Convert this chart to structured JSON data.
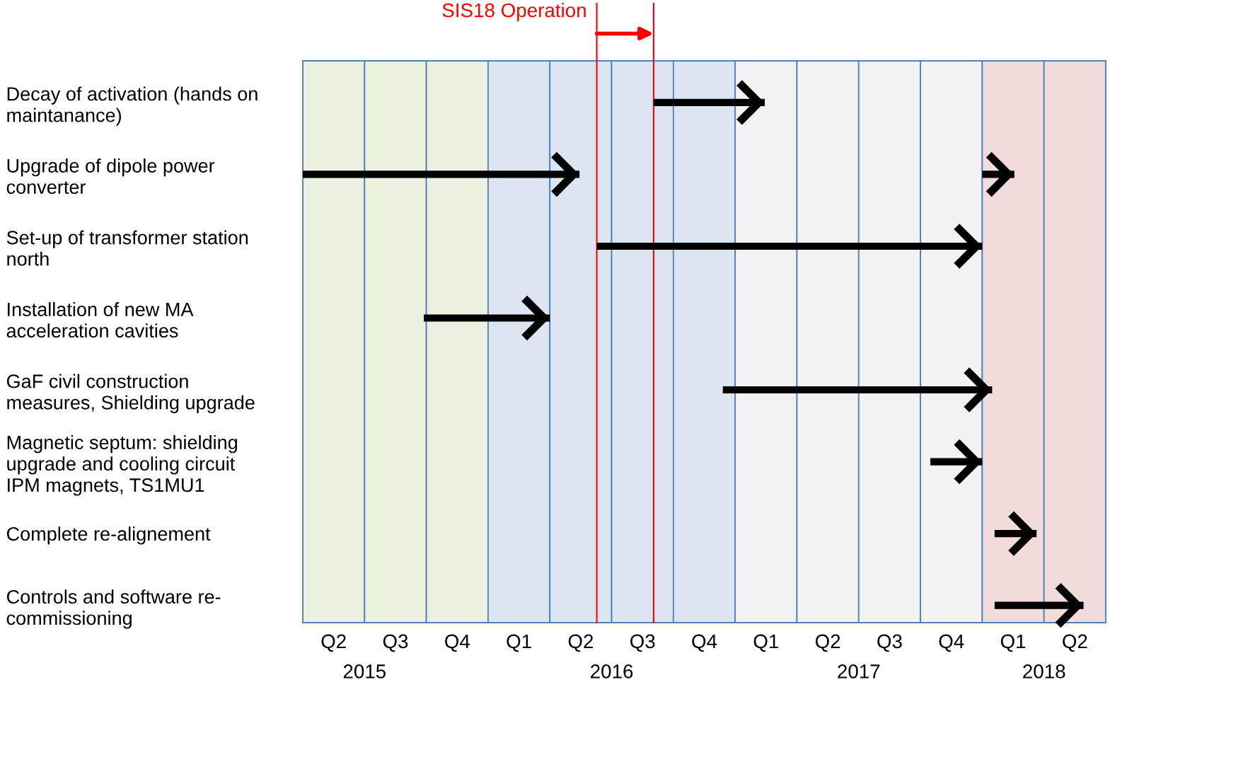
{
  "chart_data": {
    "type": "bar",
    "orientation": "horizontal",
    "categories": [
      "Decay of activation (hands on\nmaintanance)",
      "Upgrade of dipole power\nconverter",
      "Set-up of transformer station\nnorth",
      "Installation of new MA\nacceleration cavities",
      "GaF civil construction\nmeasures, Shielding upgrade",
      "Magnetic septum: shielding\nupgrade and cooling circuit\nIPM magnets, TS1MU1",
      "Complete re-alignement",
      "Controls and software re-\ncommissioning"
    ],
    "series": [
      {
        "color": "#000000",
        "base": [
          2016.67,
          2015.25,
          2016.44,
          2015.74,
          2016.95,
          2017.79,
          2018.05,
          2018.05
        ],
        "values": [
          0.45,
          1.12,
          1.56,
          0.51,
          1.09,
          0.21,
          0.17,
          0.36
        ]
      },
      {
        "color": "#000000",
        "base": [
          null,
          2018.0,
          null,
          null,
          null,
          null,
          null,
          null
        ],
        "values": [
          null,
          0.13,
          null,
          null,
          null,
          null,
          null,
          null
        ]
      }
    ],
    "xlim": [
      2015.25,
      2018.5
    ],
    "xticks": [
      {
        "value": 2015.5,
        "label": "2015"
      },
      {
        "value": 2016.5,
        "label": "2016"
      },
      {
        "value": 2017.5,
        "label": "2017"
      },
      {
        "value": 2018.25,
        "label": "2018"
      }
    ],
    "bands": [
      {
        "axis": "x",
        "from": 2015.25,
        "to": 2015.5,
        "color": "#ebf1de",
        "label": "Q2"
      },
      {
        "axis": "x",
        "from": 2015.5,
        "to": 2015.75,
        "color": "#ebf1de",
        "label": "Q3"
      },
      {
        "axis": "x",
        "from": 2015.75,
        "to": 2016.0,
        "color": "#ebf1de",
        "label": "Q4"
      },
      {
        "axis": "x",
        "from": 2016.0,
        "to": 2016.25,
        "color": "#dce6f1",
        "label": "Q1"
      },
      {
        "axis": "x",
        "from": 2016.25,
        "to": 2016.5,
        "color": "#dce6f1",
        "label": "Q2"
      },
      {
        "axis": "x",
        "from": 2016.5,
        "to": 2016.75,
        "color": "#dce6f1",
        "label": "Q3"
      },
      {
        "axis": "x",
        "from": 2016.75,
        "to": 2017.0,
        "color": "#dce6f1",
        "label": "Q4"
      },
      {
        "axis": "x",
        "from": 2017.0,
        "to": 2017.25,
        "color": "#f2f2f2",
        "label": "Q1"
      },
      {
        "axis": "x",
        "from": 2017.25,
        "to": 2017.5,
        "color": "#f2f2f2",
        "label": "Q2"
      },
      {
        "axis": "x",
        "from": 2017.5,
        "to": 2017.75,
        "color": "#f2f2f2",
        "label": "Q3"
      },
      {
        "axis": "x",
        "from": 2017.75,
        "to": 2018.0,
        "color": "#f2f2f2",
        "label": "Q4"
      },
      {
        "axis": "x",
        "from": 2018.0,
        "to": 2018.25,
        "color": "#f2dcdb",
        "label": "Q1"
      },
      {
        "axis": "x",
        "from": 2018.25,
        "to": 2018.5,
        "color": "#f2dcdb",
        "label": "Q2"
      }
    ],
    "ref_lines": [
      {
        "axis": "x",
        "value": 2016.44,
        "label": "SIS18 Operation",
        "color": "#ff0000"
      },
      {
        "axis": "x",
        "value": 2016.67,
        "color": "#ff0000"
      }
    ],
    "grid": false,
    "legend": false
  }
}
